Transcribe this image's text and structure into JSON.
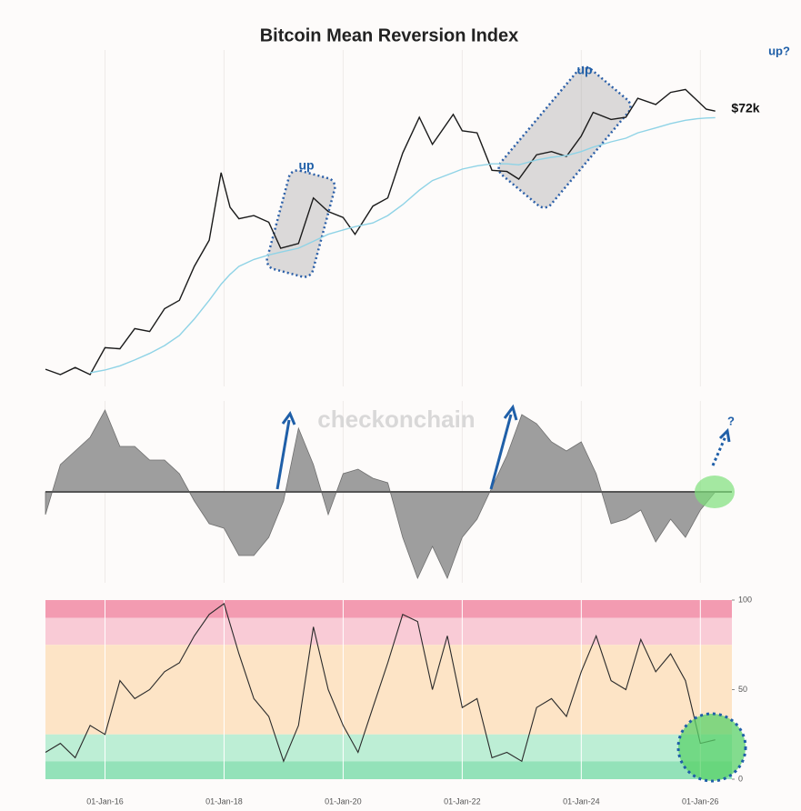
{
  "chart_data": [
    {
      "type": "line",
      "title": "Bitcoin Mean Reversion Index",
      "log_y": true,
      "xlim": [
        2015.0,
        2026.53
      ],
      "ylim": [
        186,
        270000
      ],
      "x": [
        2015.0,
        2015.25,
        2015.5,
        2015.75,
        2016.0,
        2016.25,
        2016.5,
        2016.75,
        2017.0,
        2017.25,
        2017.5,
        2017.75,
        2017.95,
        2018.1,
        2018.25,
        2018.5,
        2018.75,
        2018.95,
        2019.25,
        2019.5,
        2019.75,
        2020.0,
        2020.2,
        2020.5,
        2020.75,
        2021.0,
        2021.28,
        2021.5,
        2021.85,
        2022.0,
        2022.25,
        2022.5,
        2022.75,
        2022.95,
        2023.25,
        2023.5,
        2023.75,
        2024.0,
        2024.2,
        2024.5,
        2024.75,
        2024.95,
        2025.25,
        2025.5,
        2025.75,
        2025.95,
        2026.1,
        2026.25
      ],
      "series": [
        {
          "color": "#1a1a1a",
          "values": [
            270,
            240,
            280,
            240,
            430,
            420,
            650,
            610,
            1000,
            1200,
            2500,
            4400,
            19000,
            9000,
            7000,
            7500,
            6500,
            3700,
            4100,
            11000,
            8200,
            7200,
            5000,
            9200,
            11000,
            29000,
            63000,
            35000,
            67000,
            47000,
            45000,
            20000,
            19500,
            16500,
            28000,
            30000,
            27000,
            42000,
            70000,
            60000,
            63000,
            95000,
            83000,
            108000,
            115000,
            90000,
            75000,
            72000
          ]
        },
        {
          "color": "#8fd3e6",
          "values": [
            null,
            null,
            null,
            250,
            265,
            290,
            330,
            380,
            450,
            560,
            800,
            1200,
            1700,
            2100,
            2500,
            2900,
            3200,
            3400,
            3700,
            4300,
            5000,
            5500,
            5900,
            6400,
            7500,
            9500,
            13000,
            16000,
            19000,
            20500,
            22000,
            23000,
            23000,
            22500,
            25000,
            26500,
            27500,
            30000,
            33000,
            37000,
            40000,
            45000,
            50000,
            55000,
            59000,
            61000,
            62000,
            62500
          ]
        }
      ],
      "annotations": [
        "up",
        "up",
        "up?",
        "$72k"
      ]
    },
    {
      "type": "area",
      "xlim": [
        2015.0,
        2026.53
      ],
      "ylim": [
        -1,
        1
      ],
      "color": "#9e9e9e",
      "watermark": "checkonchain",
      "annotations": [
        "?"
      ],
      "x": [
        2015.0,
        2015.25,
        2015.5,
        2015.75,
        2016.0,
        2016.25,
        2016.5,
        2016.75,
        2017.0,
        2017.25,
        2017.5,
        2017.75,
        2018.0,
        2018.25,
        2018.5,
        2018.75,
        2019.0,
        2019.25,
        2019.5,
        2019.75,
        2020.0,
        2020.25,
        2020.5,
        2020.75,
        2021.0,
        2021.25,
        2021.5,
        2021.75,
        2022.0,
        2022.25,
        2022.5,
        2022.75,
        2023.0,
        2023.25,
        2023.5,
        2023.75,
        2024.0,
        2024.25,
        2024.5,
        2024.75,
        2025.0,
        2025.25,
        2025.5,
        2025.75,
        2026.0,
        2026.25
      ],
      "values": [
        -0.25,
        0.3,
        0.45,
        0.6,
        0.9,
        0.5,
        0.5,
        0.35,
        0.35,
        0.2,
        -0.1,
        -0.35,
        -0.4,
        -0.7,
        -0.7,
        -0.5,
        -0.1,
        0.7,
        0.3,
        -0.25,
        0.2,
        0.25,
        0.15,
        0.1,
        -0.5,
        -0.95,
        -0.6,
        -0.95,
        -0.5,
        -0.3,
        0.05,
        0.4,
        0.85,
        0.75,
        0.55,
        0.45,
        0.55,
        0.2,
        -0.35,
        -0.3,
        -0.2,
        -0.55,
        -0.3,
        -0.5,
        -0.2,
        0.0
      ]
    },
    {
      "type": "line",
      "xlim": [
        2015.0,
        2026.53
      ],
      "ylim": [
        0,
        100
      ],
      "yticks": [
        0,
        50,
        100
      ],
      "color": "#2a2a2a",
      "xticks": [
        {
          "value": 2016,
          "label": "01-Jan-16"
        },
        {
          "value": 2018,
          "label": "01-Jan-18"
        },
        {
          "value": 2020,
          "label": "01-Jan-20"
        },
        {
          "value": 2022,
          "label": "01-Jan-22"
        },
        {
          "value": 2024,
          "label": "01-Jan-24"
        },
        {
          "value": 2026,
          "label": "01-Jan-26"
        }
      ],
      "bands": [
        {
          "from": 90,
          "to": 100,
          "color": "#f39bb1"
        },
        {
          "from": 75,
          "to": 90,
          "color": "#f9cbd6"
        },
        {
          "from": 25,
          "to": 75,
          "color": "#fde4c6"
        },
        {
          "from": 10,
          "to": 25,
          "color": "#bdeed5"
        },
        {
          "from": 0,
          "to": 10,
          "color": "#93e2b9"
        }
      ],
      "x": [
        2015.0,
        2015.25,
        2015.5,
        2015.75,
        2016.0,
        2016.25,
        2016.5,
        2016.75,
        2017.0,
        2017.25,
        2017.5,
        2017.75,
        2018.0,
        2018.25,
        2018.5,
        2018.75,
        2019.0,
        2019.25,
        2019.5,
        2019.75,
        2020.0,
        2020.25,
        2020.5,
        2020.75,
        2021.0,
        2021.25,
        2021.5,
        2021.75,
        2022.0,
        2022.25,
        2022.5,
        2022.75,
        2023.0,
        2023.25,
        2023.5,
        2023.75,
        2024.0,
        2024.25,
        2024.5,
        2024.75,
        2025.0,
        2025.25,
        2025.5,
        2025.75,
        2026.0,
        2026.25
      ],
      "values": [
        15,
        20,
        12,
        30,
        25,
        55,
        45,
        50,
        60,
        65,
        80,
        92,
        98,
        70,
        45,
        35,
        10,
        30,
        85,
        50,
        30,
        15,
        40,
        65,
        92,
        88,
        50,
        80,
        40,
        45,
        12,
        15,
        10,
        40,
        45,
        35,
        60,
        80,
        55,
        50,
        78,
        60,
        70,
        55,
        20,
        22
      ]
    }
  ]
}
